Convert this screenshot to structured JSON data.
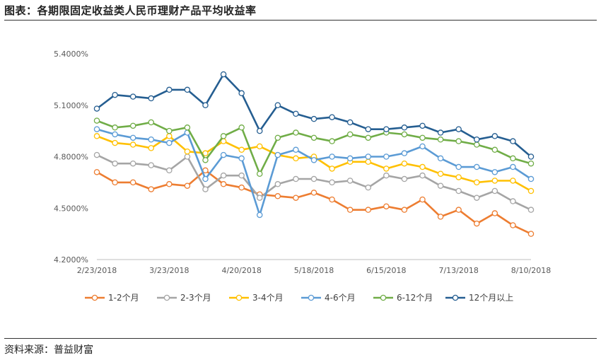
{
  "header": {
    "title": "图表：各期限固定收益类人民币理财产品平均收益率"
  },
  "footer": {
    "source": "资料来源：普益财富"
  },
  "chart_data": {
    "type": "line",
    "title": "",
    "xlabel": "",
    "ylabel": "",
    "ylim": [
      4.2,
      5.4
    ],
    "yticks": [
      "4.2000%",
      "4.5000%",
      "4.8000%",
      "5.1000%",
      "5.4000%"
    ],
    "ytick_values": [
      4.2,
      4.5,
      4.8,
      5.1,
      5.4
    ],
    "xtick_labels": [
      "2/23/2018",
      "3/23/2018",
      "4/20/2018",
      "5/18/2018",
      "6/15/2018",
      "7/13/2018",
      "8/10/2018"
    ],
    "xtick_index": [
      0,
      4,
      8,
      12,
      16,
      20,
      24
    ],
    "x": [
      "2/23/2018",
      "3/2/2018",
      "3/9/2018",
      "3/16/2018",
      "3/23/2018",
      "3/30/2018",
      "4/6/2018",
      "4/13/2018",
      "4/20/2018",
      "4/27/2018",
      "5/4/2018",
      "5/11/2018",
      "5/18/2018",
      "5/25/2018",
      "6/1/2018",
      "6/8/2018",
      "6/15/2018",
      "6/22/2018",
      "6/29/2018",
      "7/6/2018",
      "7/13/2018",
      "7/20/2018",
      "7/27/2018",
      "8/3/2018",
      "8/10/2018"
    ],
    "legend_position": "bottom",
    "grid": false,
    "series": [
      {
        "name": "1-2个月",
        "color": "#ED7D31",
        "values": [
          4.71,
          4.65,
          4.65,
          4.61,
          4.64,
          4.63,
          4.72,
          4.64,
          4.62,
          4.58,
          4.57,
          4.56,
          4.59,
          4.55,
          4.49,
          4.49,
          4.51,
          4.49,
          4.55,
          4.45,
          4.49,
          4.41,
          4.47,
          4.4,
          4.35
        ]
      },
      {
        "name": "2-3个月",
        "color": "#A5A5A5",
        "values": [
          4.81,
          4.76,
          4.76,
          4.75,
          4.72,
          4.8,
          4.61,
          4.69,
          4.69,
          4.56,
          4.64,
          4.67,
          4.67,
          4.65,
          4.66,
          4.62,
          4.69,
          4.67,
          4.69,
          4.63,
          4.6,
          4.56,
          4.6,
          4.54,
          4.49
        ]
      },
      {
        "name": "3-4个月",
        "color": "#FFC000",
        "values": [
          4.92,
          4.88,
          4.87,
          4.85,
          4.92,
          4.83,
          4.82,
          4.89,
          4.84,
          4.86,
          4.81,
          4.79,
          4.8,
          4.73,
          4.77,
          4.77,
          4.73,
          4.76,
          4.74,
          4.7,
          4.68,
          4.65,
          4.66,
          4.66,
          4.6
        ]
      },
      {
        "name": "4-6个月",
        "color": "#5B9BD5",
        "values": [
          4.96,
          4.93,
          4.91,
          4.9,
          4.88,
          4.94,
          4.67,
          4.81,
          4.79,
          4.46,
          4.81,
          4.84,
          4.78,
          4.8,
          4.79,
          4.8,
          4.8,
          4.82,
          4.86,
          4.79,
          4.74,
          4.74,
          4.71,
          4.74,
          4.67
        ]
      },
      {
        "name": "6-12个月",
        "color": "#70AD47",
        "values": [
          5.01,
          4.97,
          4.98,
          5.0,
          4.95,
          4.97,
          4.78,
          4.92,
          4.97,
          4.7,
          4.91,
          4.94,
          4.91,
          4.89,
          4.93,
          4.91,
          4.94,
          4.93,
          4.91,
          4.9,
          4.89,
          4.87,
          4.84,
          4.79,
          4.76
        ]
      },
      {
        "name": "12个月以上",
        "color": "#255E91",
        "values": [
          5.08,
          5.16,
          5.15,
          5.14,
          5.19,
          5.19,
          5.1,
          5.28,
          5.17,
          4.95,
          5.1,
          5.05,
          5.02,
          5.03,
          5.0,
          4.96,
          4.96,
          4.97,
          4.98,
          4.94,
          4.96,
          4.9,
          4.92,
          4.89,
          4.8
        ]
      }
    ]
  }
}
